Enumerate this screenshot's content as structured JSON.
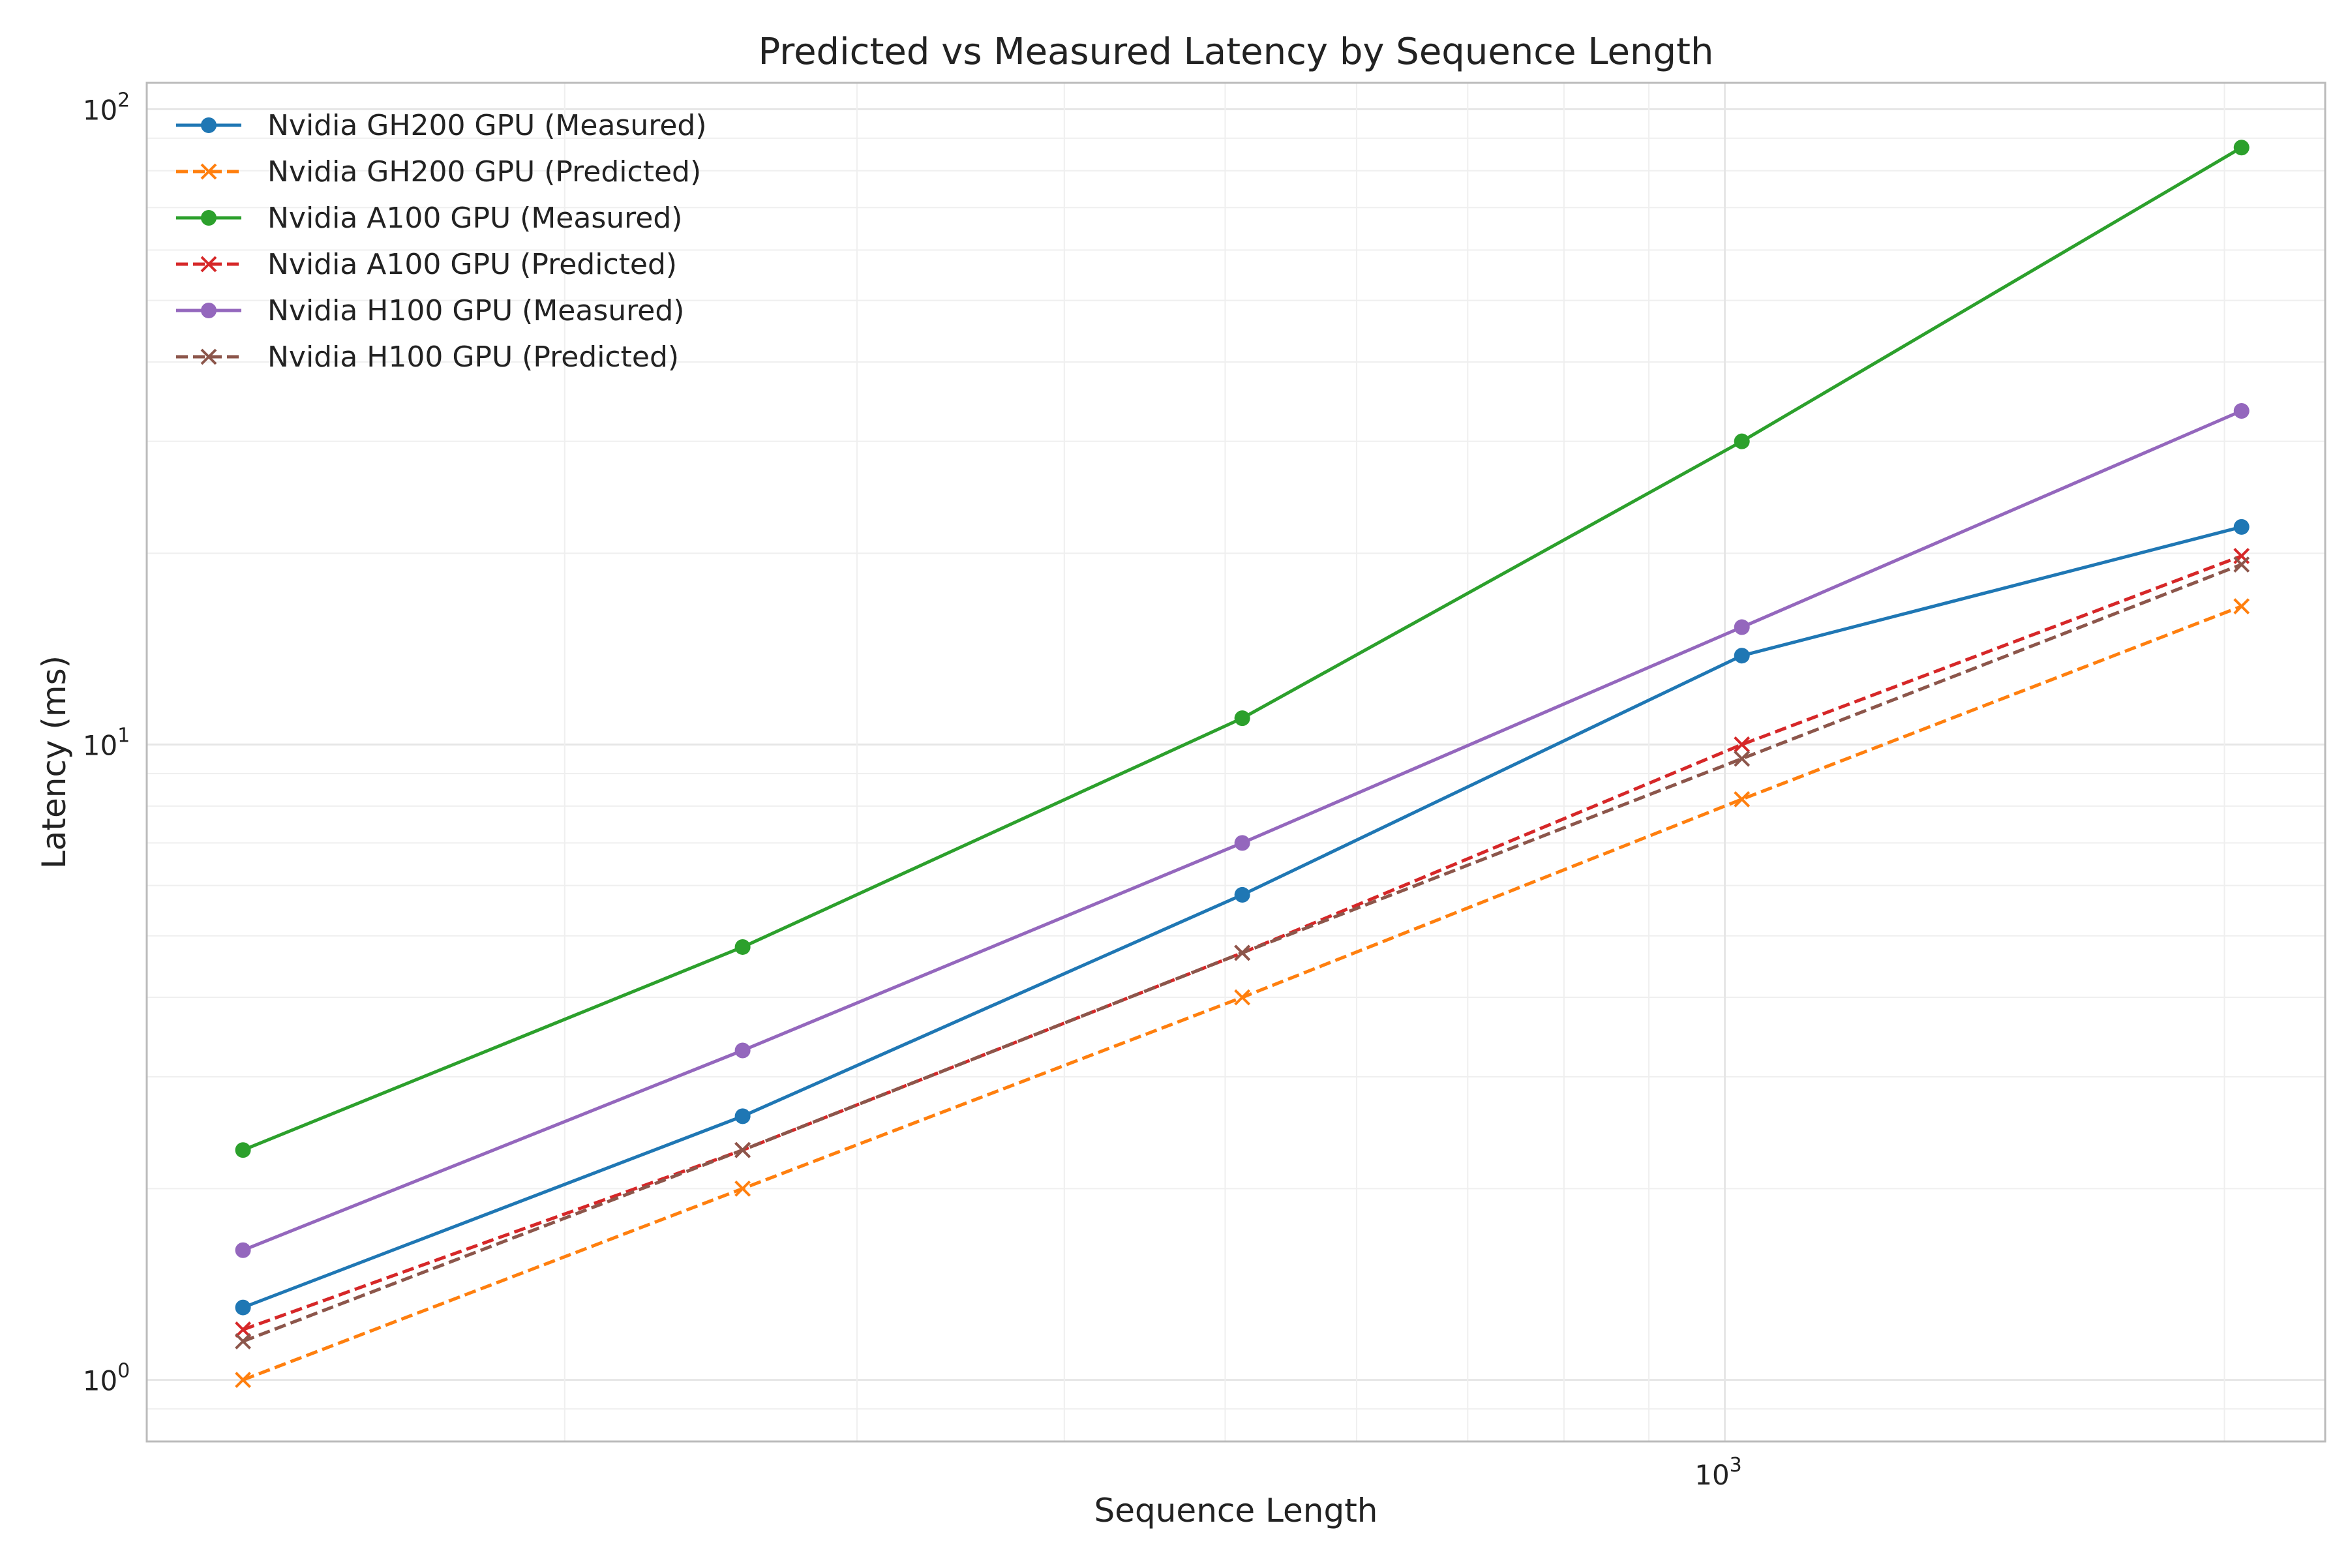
{
  "chart_data": {
    "type": "line",
    "title": "Predicted vs Measured Latency by Sequence Length",
    "xlabel": "Sequence Length",
    "ylabel": "Latency (ms)",
    "xscale": "log",
    "yscale": "log",
    "xlim": [
      112,
      2300
    ],
    "ylim": [
      0.8,
      110
    ],
    "x": [
      128,
      256,
      512,
      1024,
      2048
    ],
    "x_major_ticks": [
      {
        "value": 1000,
        "base": "10",
        "exp": "3"
      }
    ],
    "y_major_ticks": [
      {
        "value": 1,
        "base": "10",
        "exp": "0"
      },
      {
        "value": 10,
        "base": "10",
        "exp": "1"
      },
      {
        "value": 100,
        "base": "10",
        "exp": "2"
      }
    ],
    "grid": true,
    "legend_position": "top-left",
    "series": [
      {
        "name": "Nvidia GH200 GPU (Measured)",
        "values": [
          1.3,
          2.6,
          5.8,
          13.8,
          22.0
        ],
        "color": "#1f77b4",
        "dashed": false,
        "marker": "circle"
      },
      {
        "name": "Nvidia GH200 GPU (Predicted)",
        "values": [
          1.0,
          2.0,
          4.0,
          8.2,
          16.5
        ],
        "color": "#ff7f0e",
        "dashed": true,
        "marker": "x"
      },
      {
        "name": "Nvidia A100 GPU (Measured)",
        "values": [
          2.3,
          4.8,
          11.0,
          30.0,
          87.0
        ],
        "color": "#2ca02c",
        "dashed": false,
        "marker": "circle"
      },
      {
        "name": "Nvidia A100 GPU (Predicted)",
        "values": [
          1.2,
          2.3,
          4.7,
          10.0,
          19.8
        ],
        "color": "#d62728",
        "dashed": true,
        "marker": "x"
      },
      {
        "name": "Nvidia H100 GPU (Measured)",
        "values": [
          1.6,
          3.3,
          7.0,
          15.3,
          33.5
        ],
        "color": "#9467bd",
        "dashed": false,
        "marker": "circle"
      },
      {
        "name": "Nvidia H100 GPU (Predicted)",
        "values": [
          1.15,
          2.3,
          4.7,
          9.5,
          19.2
        ],
        "color": "#8c564b",
        "dashed": true,
        "marker": "x"
      }
    ]
  }
}
